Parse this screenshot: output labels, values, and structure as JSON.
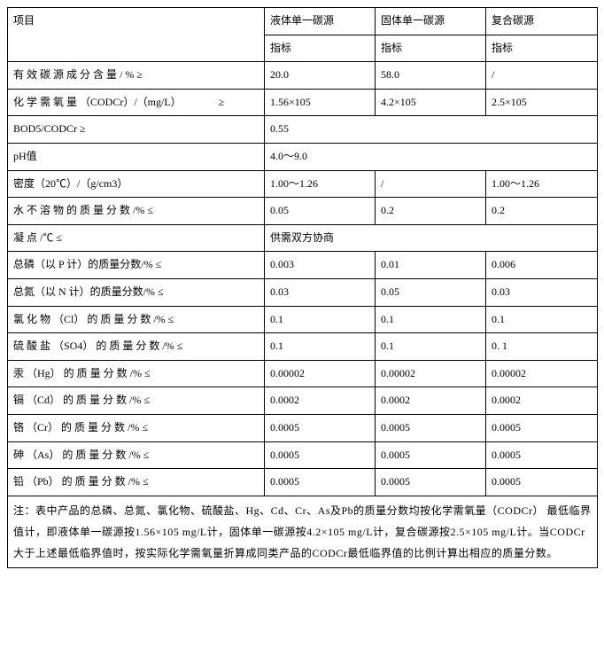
{
  "header": {
    "item_label": "项目",
    "col1": "液体单一碳源",
    "col2": "固体单一碳源",
    "col3": "复合碳源",
    "sub": "指标"
  },
  "rows": [
    {
      "label": "有 效 碳 源 成 分 含 量 / % ≥",
      "c1": "20.0",
      "c2": "58.0",
      "c3": "/"
    },
    {
      "label": "化 学 需 氧 量 （CODCr）/（mg/L）　　　　≥",
      "c1": "1.56×105",
      "c2": "4.2×105",
      "c3": "2.5×105"
    },
    {
      "label": "BOD5/CODCr ≥",
      "span": "0.55"
    },
    {
      "label": "pH值",
      "span": "4.0～9.0"
    },
    {
      "label": "密度（20℃）/（g/cm3）",
      "c1": "1.00～1.26",
      "c2": "/",
      "c3": "1.00～1.26"
    },
    {
      "label": "水 不 溶 物 的 质 量 分 数 /% ≤",
      "c1": "0.05",
      "c2": "0.2",
      "c3": "0.2"
    },
    {
      "label": "凝 点 /℃ ≤",
      "span": "供需双方协商"
    },
    {
      "label": "总磷（以 P 计）的质量分数/% ≤",
      "c1": "0.003",
      "c2": "0.01",
      "c3": "0.006"
    },
    {
      "label": "总氮（以 N 计）的质量分数/% ≤",
      "c1": "0.03",
      "c2": "0.05",
      "c3": "0.03"
    },
    {
      "label": "氯 化 物 （Cl） 的 质 量 分 数 /% ≤",
      "c1": "0.1",
      "c2": "0.1",
      "c3": "0.1"
    },
    {
      "label": "硫 酸 盐 （SO4） 的 质 量 分 数 /% ≤",
      "c1": "0.1",
      "c2": "0.1",
      "c3": "0. 1"
    },
    {
      "label": "汞 （Hg） 的 质 量 分 数 /% ≤",
      "c1": "0.00002",
      "c2": "0.00002",
      "c3": "0.00002"
    },
    {
      "label": "镉 （Cd） 的 质 量 分 数 /% ≤",
      "c1": "0.0002",
      "c2": "0.0002",
      "c3": "0.0002"
    },
    {
      "label": "铬 （Cr） 的 质 量 分 数 /% ≤",
      "c1": "0.0005",
      "c2": "0.0005",
      "c3": "0.0005"
    },
    {
      "label": "砷 （As） 的 质 量 分 数 /% ≤",
      "c1": "0.0005",
      "c2": "0.0005",
      "c3": "0.0005"
    },
    {
      "label": "铅 （Pb） 的 质 量 分 数 /% ≤",
      "c1": "0.0005",
      "c2": "0.0005",
      "c3": "0.0005"
    }
  ],
  "note": "注：表中产品的总磷、总氮、氯化物、硫酸盐、Hg、Cd、Cr、As及Pb的质量分数均按化学需氧量（CODCr） 最低临界值计，即液体单一碳源按1.56×105 mg/L计，固体单一碳源按4.2×105 mg/L计，复合碳源按2.5×105 mg/L计。当CODCr大于上述最低临界值时，按实际化学需氧量折算成同类产品的CODCr最低临界值的比例计算出相应的质量分数。"
}
